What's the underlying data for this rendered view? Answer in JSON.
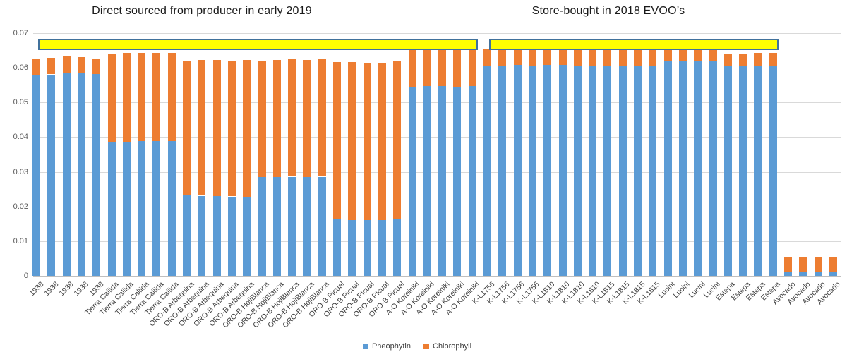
{
  "chart_data": {
    "type": "bar",
    "stacked": true,
    "grid": true,
    "legend_position": "bottom",
    "group_titles": [
      {
        "text": "Direct sourced from producer in early 2019"
      },
      {
        "text": "Store-bought in 2018 EVOO’s"
      }
    ],
    "categories": [
      "1938",
      "1938",
      "1938",
      "1938",
      "1938",
      "Tierra Callida",
      "Tierra Callida",
      "Tierra Callida",
      "Tierra Callida",
      "Tierra Callida",
      "ORO-B Arbequina",
      "ORO-B Arbequina",
      "ORO-B Arbequina",
      "ORO-B Arbequina",
      "ORO-B Arbequina",
      "ORO-B HojiBlanca",
      "ORO-B HojiBlanca",
      "ORO-B HojiBlanca",
      "ORO-B HojiBlanca",
      "ORO-B HojiBlanca",
      "ORO-B Picual",
      "ORO-B Picual",
      "ORO-B Picual",
      "ORO-B Picual",
      "ORO-B Picual",
      "A-O Koreiniki",
      "A-O Koreiniki",
      "A-O Koreiniki",
      "A-O Koreiniki",
      "A-O Koreiniki",
      "K-L1756",
      "K-L1756",
      "K-L1756",
      "K-L1756",
      "K-L1810",
      "K-L1810",
      "K-L1810",
      "K-L1810",
      "K-L1815",
      "K-L1815",
      "K-L1815",
      "K-L1815",
      "Lucini",
      "Lucini",
      "Lucini",
      "Lucini",
      "Estepa",
      "Estepa",
      "Estepa",
      "Estepa",
      "Avocado",
      "Avocado",
      "Avocado",
      "Avocado"
    ],
    "series": [
      {
        "name": "Pheophytin",
        "color": "#5B9BD5",
        "values": [
          0.0578,
          0.0581,
          0.0586,
          0.0584,
          0.0582,
          0.0385,
          0.0386,
          0.0388,
          0.0389,
          0.0388,
          0.0232,
          0.0231,
          0.023,
          0.0229,
          0.0228,
          0.0284,
          0.0285,
          0.0286,
          0.0285,
          0.0286,
          0.0162,
          0.016,
          0.0161,
          0.016,
          0.0163,
          0.0545,
          0.0547,
          0.0547,
          0.0546,
          0.0548,
          0.0607,
          0.0607,
          0.0608,
          0.0607,
          0.0608,
          0.0609,
          0.0606,
          0.0606,
          0.0607,
          0.0607,
          0.0604,
          0.0605,
          0.0619,
          0.062,
          0.0621,
          0.062,
          0.0607,
          0.0606,
          0.0606,
          0.0605,
          0.001,
          0.001,
          0.0011,
          0.001
        ]
      },
      {
        "name": "Chlorophyll",
        "color": "#ED7D31",
        "values": [
          0.0047,
          0.0048,
          0.0046,
          0.0046,
          0.0045,
          0.0256,
          0.0257,
          0.0256,
          0.0255,
          0.0255,
          0.0388,
          0.0392,
          0.0392,
          0.0392,
          0.0394,
          0.0337,
          0.0338,
          0.0338,
          0.0337,
          0.0338,
          0.0454,
          0.0456,
          0.0454,
          0.0455,
          0.0455,
          0.0106,
          0.0106,
          0.0105,
          0.0105,
          0.0105,
          0.0048,
          0.0048,
          0.0048,
          0.0049,
          0.0053,
          0.0053,
          0.0049,
          0.005,
          0.0049,
          0.0053,
          0.005,
          0.005,
          0.0036,
          0.0035,
          0.0035,
          0.0036,
          0.0034,
          0.0036,
          0.0037,
          0.0038,
          0.0045,
          0.0046,
          0.0045,
          0.0046
        ]
      }
    ],
    "ylim": [
      0,
      0.07
    ],
    "y_ticks": [
      0,
      0.01,
      0.02,
      0.03,
      0.04,
      0.05,
      0.06,
      0.07
    ],
    "y_tick_labels": [
      "0",
      "0.01",
      "0.02",
      "0.03",
      "0.04",
      "0.05",
      "0.06",
      "0.07"
    ],
    "highlights": [
      {
        "name": "direct-sourced-highlight",
        "from_index": 0,
        "to_index": 29,
        "color": "#FFFF00",
        "border_color": "#41719C"
      },
      {
        "name": "store-bought-highlight",
        "from_index": 30,
        "to_index": 49,
        "color": "#FFFF00",
        "border_color": "#41719C"
      }
    ],
    "colors": {
      "gridline": "#D9D9D9",
      "axis_line": "#BFBFBF",
      "tick_label": "#595959",
      "category_label": "#404040",
      "title": "#1a1a1a"
    }
  }
}
